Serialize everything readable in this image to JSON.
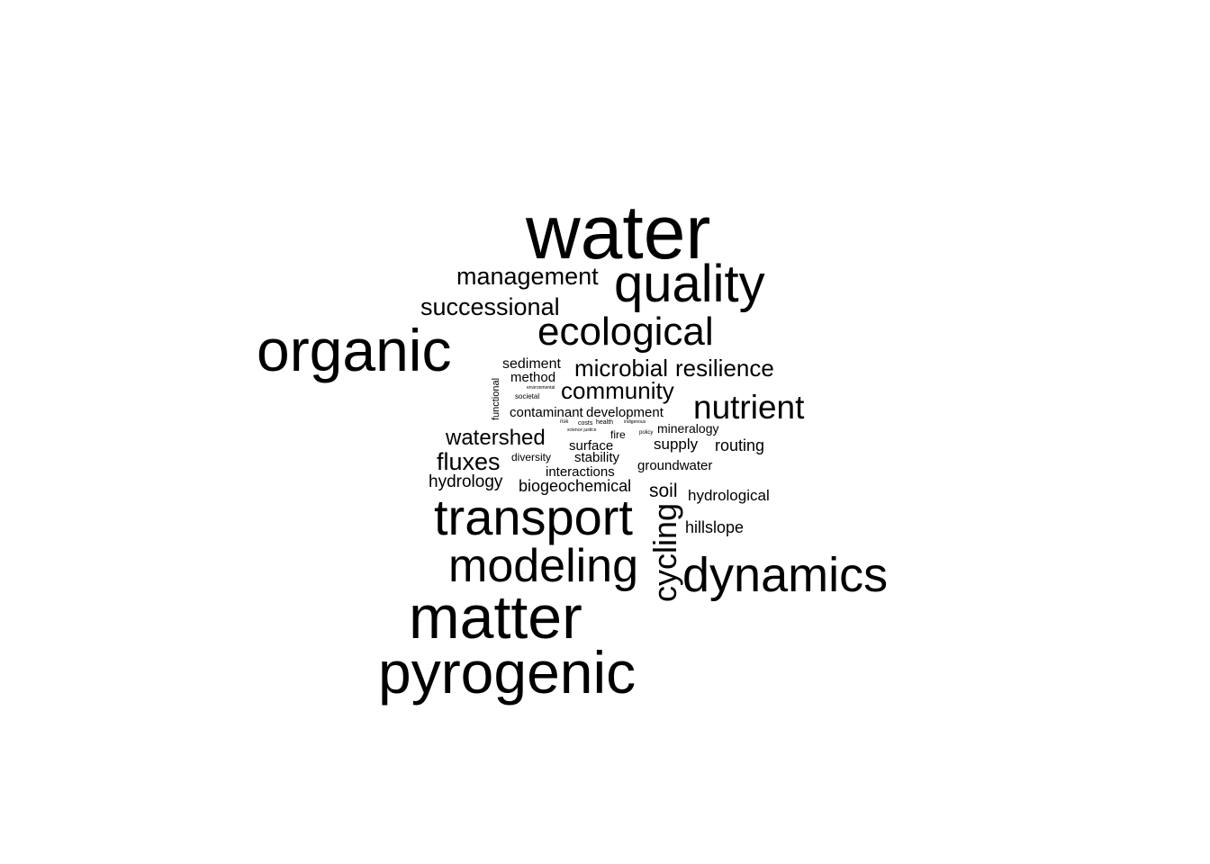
{
  "word_cloud": {
    "text_color": "#000000",
    "background_color": "#ffffff",
    "words": {
      "water": "water",
      "quality": "quality",
      "management": "management",
      "successional": "successional",
      "organic": "organic",
      "ecological": "ecological",
      "sediment": "sediment",
      "method": "method",
      "microbial": "microbial",
      "resilience": "resilience",
      "community": "community",
      "functional": "functional",
      "environmental": "environmental",
      "societal": "societal",
      "nutrient": "nutrient",
      "contaminant": "contaminant",
      "development": "development",
      "risk": "risk",
      "costs": "costs",
      "health": "health",
      "indigenous": "indigenous",
      "science_justice": "science justice",
      "fire": "fire",
      "policy": "policy",
      "mineralogy": "mineralogy",
      "watershed": "watershed",
      "surface": "surface",
      "supply": "supply",
      "routing": "routing",
      "fluxes": "fluxes",
      "diversity": "diversity",
      "stability": "stability",
      "groundwater": "groundwater",
      "interactions": "interactions",
      "hydrology": "hydrology",
      "biogeochemical": "biogeochemical",
      "soil": "soil",
      "hydrological": "hydrological",
      "transport": "transport",
      "cycling": "cycling",
      "hillslope": "hillslope",
      "modeling": "modeling",
      "dynamics": "dynamics",
      "matter": "matter",
      "pyrogenic": "pyrogenic"
    }
  }
}
